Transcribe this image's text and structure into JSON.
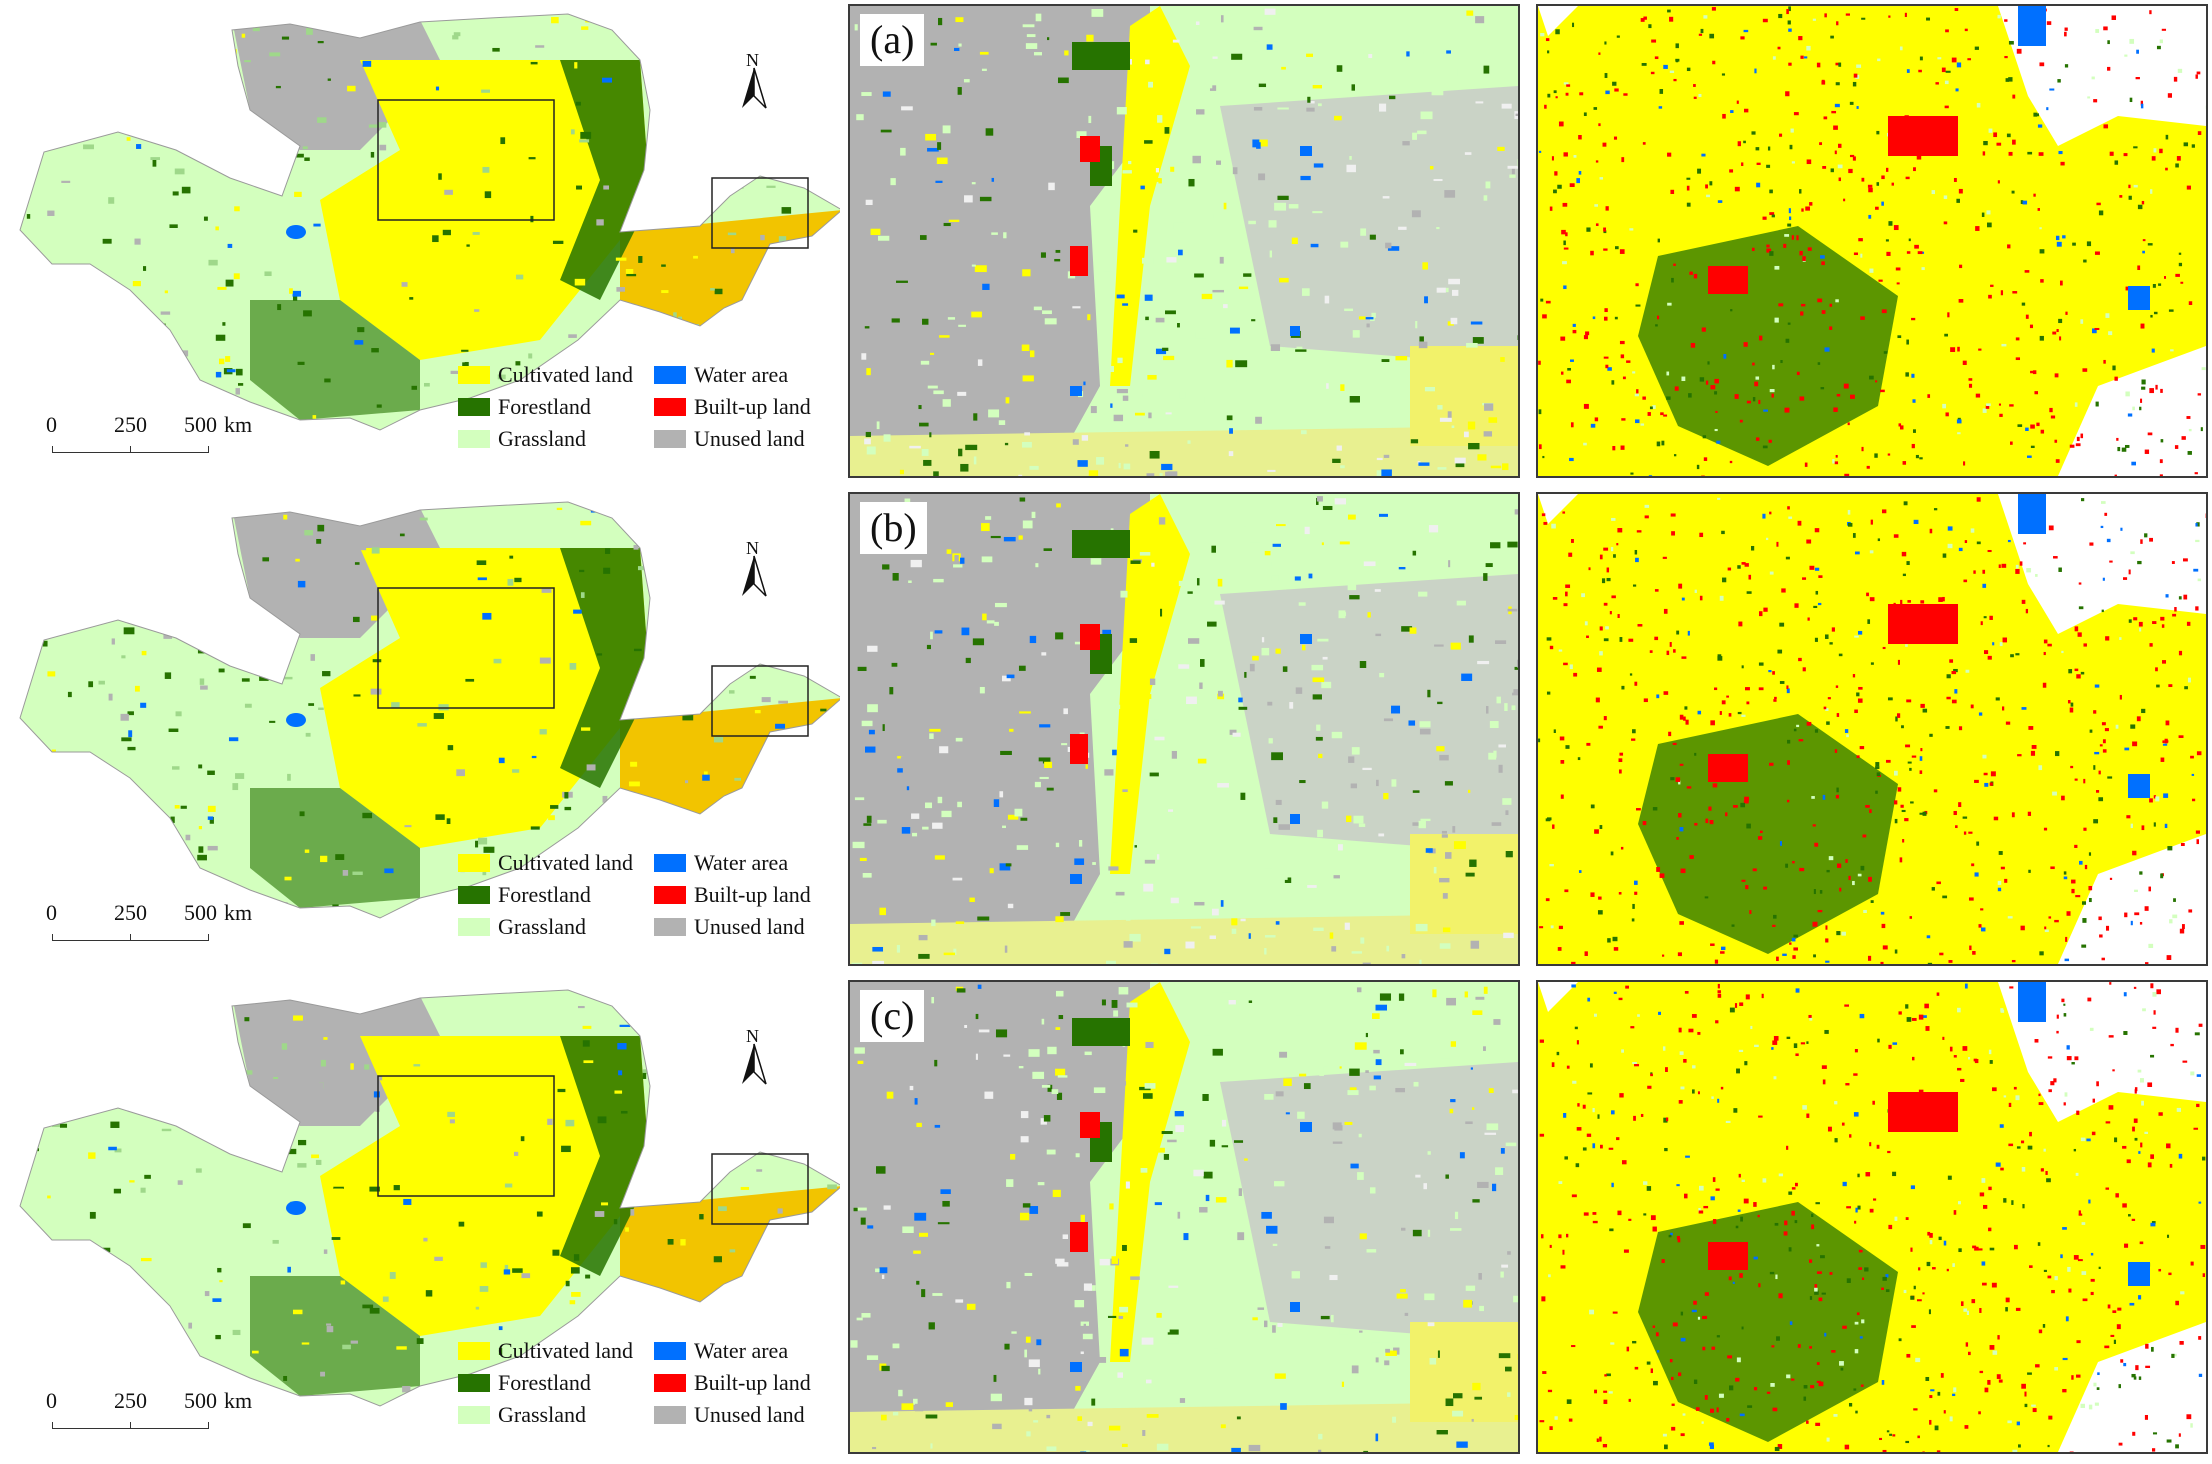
{
  "panels": [
    {
      "label": "(a)"
    },
    {
      "label": "(b)"
    },
    {
      "label": "(c)"
    }
  ],
  "legend": [
    {
      "label": "Cultivated land",
      "color": "#ffff00"
    },
    {
      "label": "Water area",
      "color": "#0070ff"
    },
    {
      "label": "Forestland",
      "color": "#267300"
    },
    {
      "label": "Built-up land",
      "color": "#ff0000"
    },
    {
      "label": "Grassland",
      "color": "#d3ffbe"
    },
    {
      "label": "Unused land",
      "color": "#b2b2b2"
    }
  ],
  "scale_bar": {
    "ticks": [
      "0",
      "250",
      "500"
    ],
    "unit": "km"
  },
  "north_arrow": {
    "letter": "N",
    "icon": "north-arrow-icon"
  },
  "colors": {
    "cultivated": "#ffff00",
    "water": "#0070ff",
    "forest": "#267300",
    "builtup": "#ff0000",
    "grass": "#d3ffbe",
    "unused": "#b2b2b2"
  }
}
